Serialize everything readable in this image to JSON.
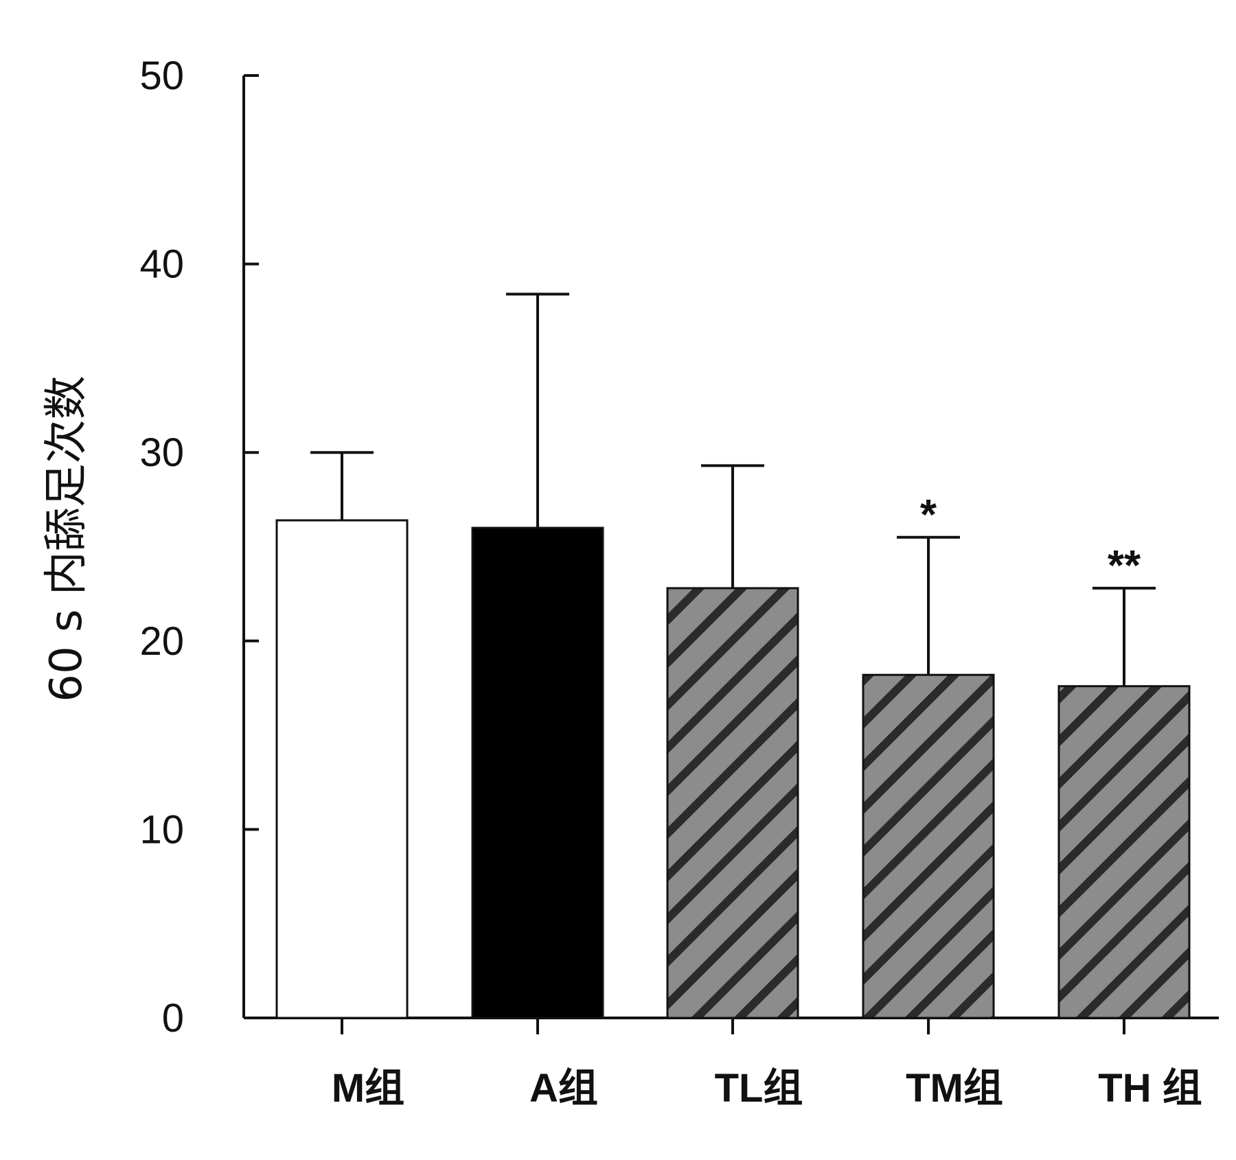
{
  "chart_data": {
    "type": "bar",
    "title": "",
    "xlabel": "",
    "ylabel": "60 s 内舔足次数",
    "ylim": [
      0,
      50
    ],
    "yticks": [
      0,
      10,
      20,
      30,
      40,
      50
    ],
    "grid": false,
    "categories": [
      "M组",
      "A组",
      "TL组",
      "TM组",
      "TH 组"
    ],
    "values": [
      26.4,
      26.0,
      22.8,
      18.2,
      17.6
    ],
    "error_upper": [
      30.0,
      38.4,
      29.3,
      25.5,
      22.8
    ],
    "significance": [
      "",
      "",
      "",
      "*",
      "**"
    ],
    "fills": [
      {
        "pattern": "solid",
        "color": "#ffffff"
      },
      {
        "pattern": "solid",
        "color": "#000000"
      },
      {
        "pattern": "diagonal-hatch",
        "color": "#8c8c8c",
        "stripe": "#2b2b2b"
      },
      {
        "pattern": "diagonal-hatch",
        "color": "#8c8c8c",
        "stripe": "#2b2b2b"
      },
      {
        "pattern": "diagonal-hatch",
        "color": "#8c8c8c",
        "stripe": "#2b2b2b"
      }
    ]
  }
}
